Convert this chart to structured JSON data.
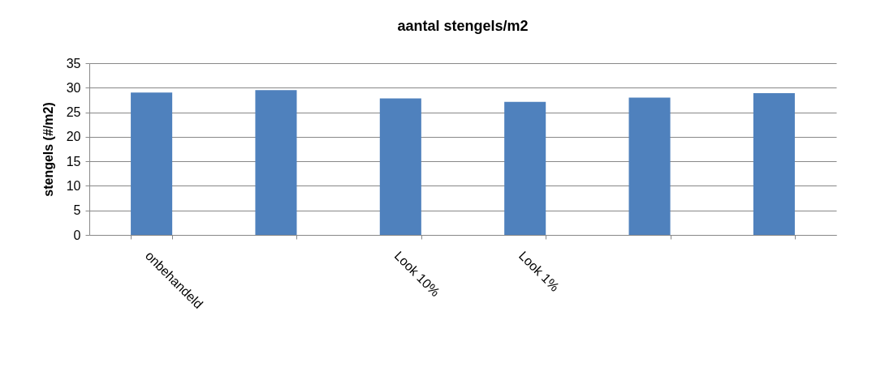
{
  "chart_data": {
    "type": "bar",
    "title": "aantal stengels/m2",
    "ylabel": "stengels (#/m2)",
    "categories": [
      "onbehandeld",
      null,
      "Look 10%",
      "Look 1%",
      null,
      null
    ],
    "values": [
      29,
      29.5,
      27.8,
      27.1,
      28,
      28.9
    ],
    "color": "#4f81bd",
    "ylim": [
      0,
      35
    ],
    "yticks": [
      0,
      5,
      10,
      15,
      20,
      25,
      30,
      35
    ],
    "grid": "y"
  }
}
